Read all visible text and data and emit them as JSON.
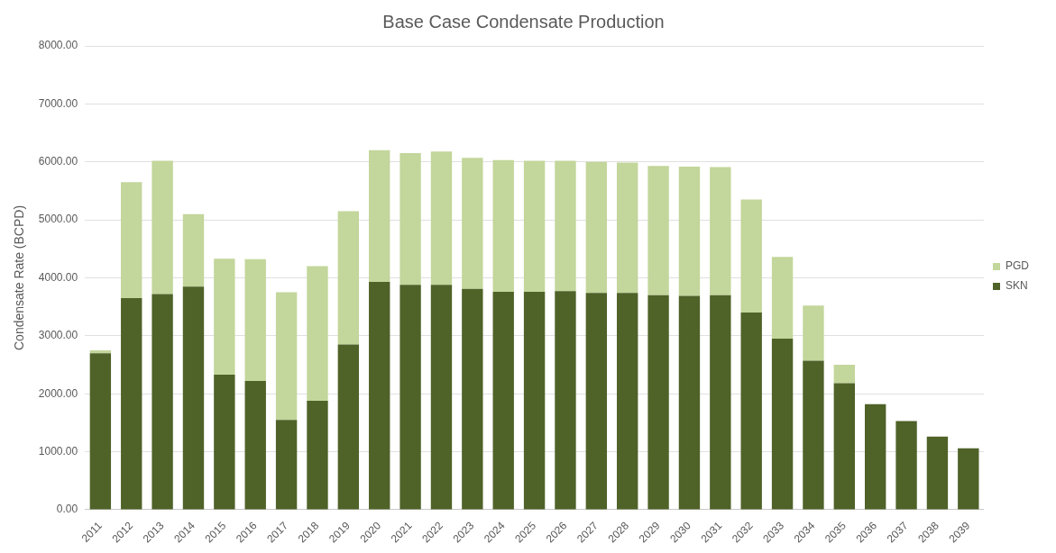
{
  "chart_data": {
    "type": "bar",
    "title": "Base Case Condensate Production",
    "ylabel": "Condensate Rate (BCPD)",
    "categories": [
      "2011",
      "2012",
      "2013",
      "2014",
      "2015",
      "2016",
      "2017",
      "2018",
      "2019",
      "2020",
      "2021",
      "2022",
      "2023",
      "2024",
      "2025",
      "2026",
      "2027",
      "2028",
      "2029",
      "2030",
      "2031",
      "2032",
      "2033",
      "2034",
      "2035",
      "2036",
      "2037",
      "2038",
      "2039"
    ],
    "stacked": true,
    "series": [
      {
        "name": "SKN",
        "color": "#4f6228",
        "values": [
          2700,
          3650,
          3720,
          3850,
          2330,
          2220,
          1550,
          1880,
          2850,
          3930,
          3880,
          3880,
          3810,
          3760,
          3760,
          3770,
          3740,
          3740,
          3700,
          3690,
          3700,
          3400,
          2950,
          2570,
          2180,
          1820,
          1530,
          1260,
          1060
        ]
      },
      {
        "name": "PGD",
        "color": "#c3d69b",
        "values": [
          50,
          2000,
          2300,
          1250,
          2000,
          2100,
          2200,
          2320,
          2300,
          2270,
          2270,
          2300,
          2260,
          2270,
          2260,
          2250,
          2260,
          2250,
          2230,
          2230,
          2210,
          1950,
          1410,
          950,
          320,
          0,
          0,
          0,
          0
        ]
      }
    ],
    "ylim": [
      0,
      8000
    ],
    "yticks": [
      {
        "value": 0,
        "label": "0.00"
      },
      {
        "value": 1000,
        "label": "1000.00"
      },
      {
        "value": 2000,
        "label": "2000.00"
      },
      {
        "value": 3000,
        "label": "3000.00"
      },
      {
        "value": 4000,
        "label": "4000.00"
      },
      {
        "value": 5000,
        "label": "5000.00"
      },
      {
        "value": 6000,
        "label": "6000.00"
      },
      {
        "value": 7000,
        "label": "7000.00"
      },
      {
        "value": 8000,
        "label": "8000.00"
      }
    ],
    "grid": "y",
    "legend": "right"
  }
}
